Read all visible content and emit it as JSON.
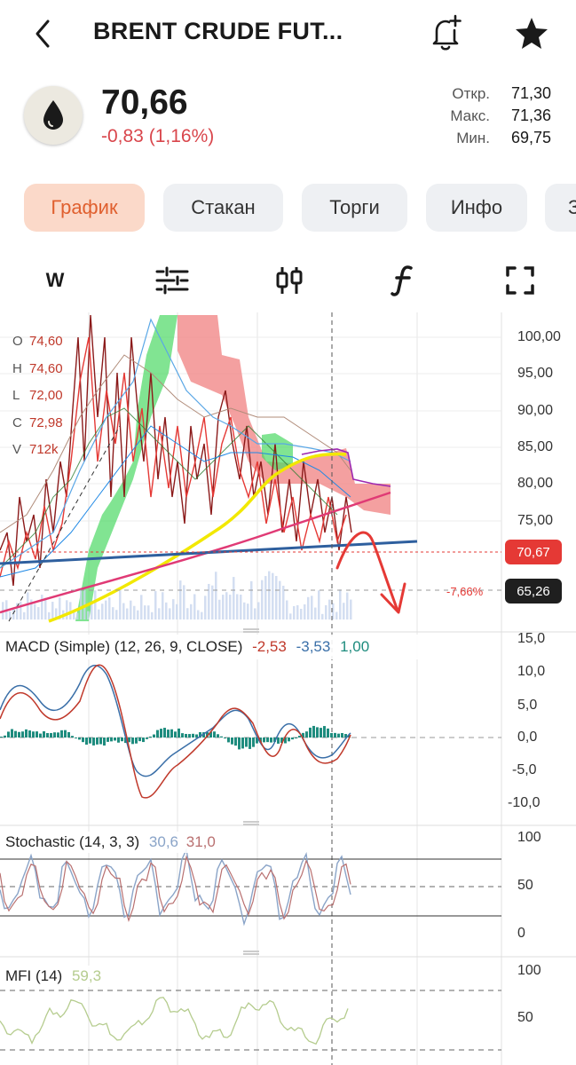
{
  "header": {
    "title": "BRENT CRUDE FUT...",
    "back_icon": "chevron-left-icon",
    "alert_icon": "bell-plus-icon",
    "favorite_icon": "star-icon"
  },
  "quote": {
    "price": "70,66",
    "change": "-0,83 (1,16%)",
    "change_color": "#d9464c",
    "open_label": "Откр.",
    "open_value": "71,30",
    "high_label": "Макс.",
    "high_value": "71,36",
    "low_label": "Мин.",
    "low_value": "69,75",
    "logo_icon": "oil-drop-icon"
  },
  "tabs": [
    {
      "label": "График",
      "active": true
    },
    {
      "label": "Стакан",
      "active": false
    },
    {
      "label": "Торги",
      "active": false
    },
    {
      "label": "Инфо",
      "active": false
    },
    {
      "label": "З",
      "active": false
    }
  ],
  "toolbar": {
    "interval_label": "W",
    "settings_icon": "sliders-icon",
    "chart_type_icon": "candlestick-icon",
    "indicators_icon": "function-icon",
    "fullscreen_icon": "fullscreen-icon"
  },
  "main_chart": {
    "ohlc": [
      {
        "key": "O",
        "value": "74,60"
      },
      {
        "key": "H",
        "value": "74,60"
      },
      {
        "key": "L",
        "value": "72,00"
      },
      {
        "key": "C",
        "value": "72,98"
      },
      {
        "key": "V",
        "value": "712k"
      }
    ],
    "y_ticks": [
      "100,00",
      "95,00",
      "90,00",
      "85,00",
      "80,00",
      "75,00"
    ],
    "current_price_tag": "70,67",
    "target_price_tag": "65,26",
    "target_percent": "-7,66%",
    "accent_red": "#e53935",
    "accent_dark": "#1f1f1f"
  },
  "macd": {
    "label": "MACD (Simple) (12, 26, 9, CLOSE)",
    "v1": "-2,53",
    "v2": "-3,53",
    "v3": "1,00",
    "y_ticks": [
      "15,0",
      "10,0",
      "5,0",
      "0,0",
      "-5,0",
      "-10,0"
    ]
  },
  "stochastic": {
    "label": "Stochastic (14, 3, 3)",
    "v1": "30,6",
    "v2": "31,0",
    "y_ticks": [
      "100",
      "50",
      "0"
    ]
  },
  "mfi": {
    "label": "MFI (14)",
    "v1": "59,3",
    "y_ticks": [
      "100",
      "50"
    ]
  }
}
